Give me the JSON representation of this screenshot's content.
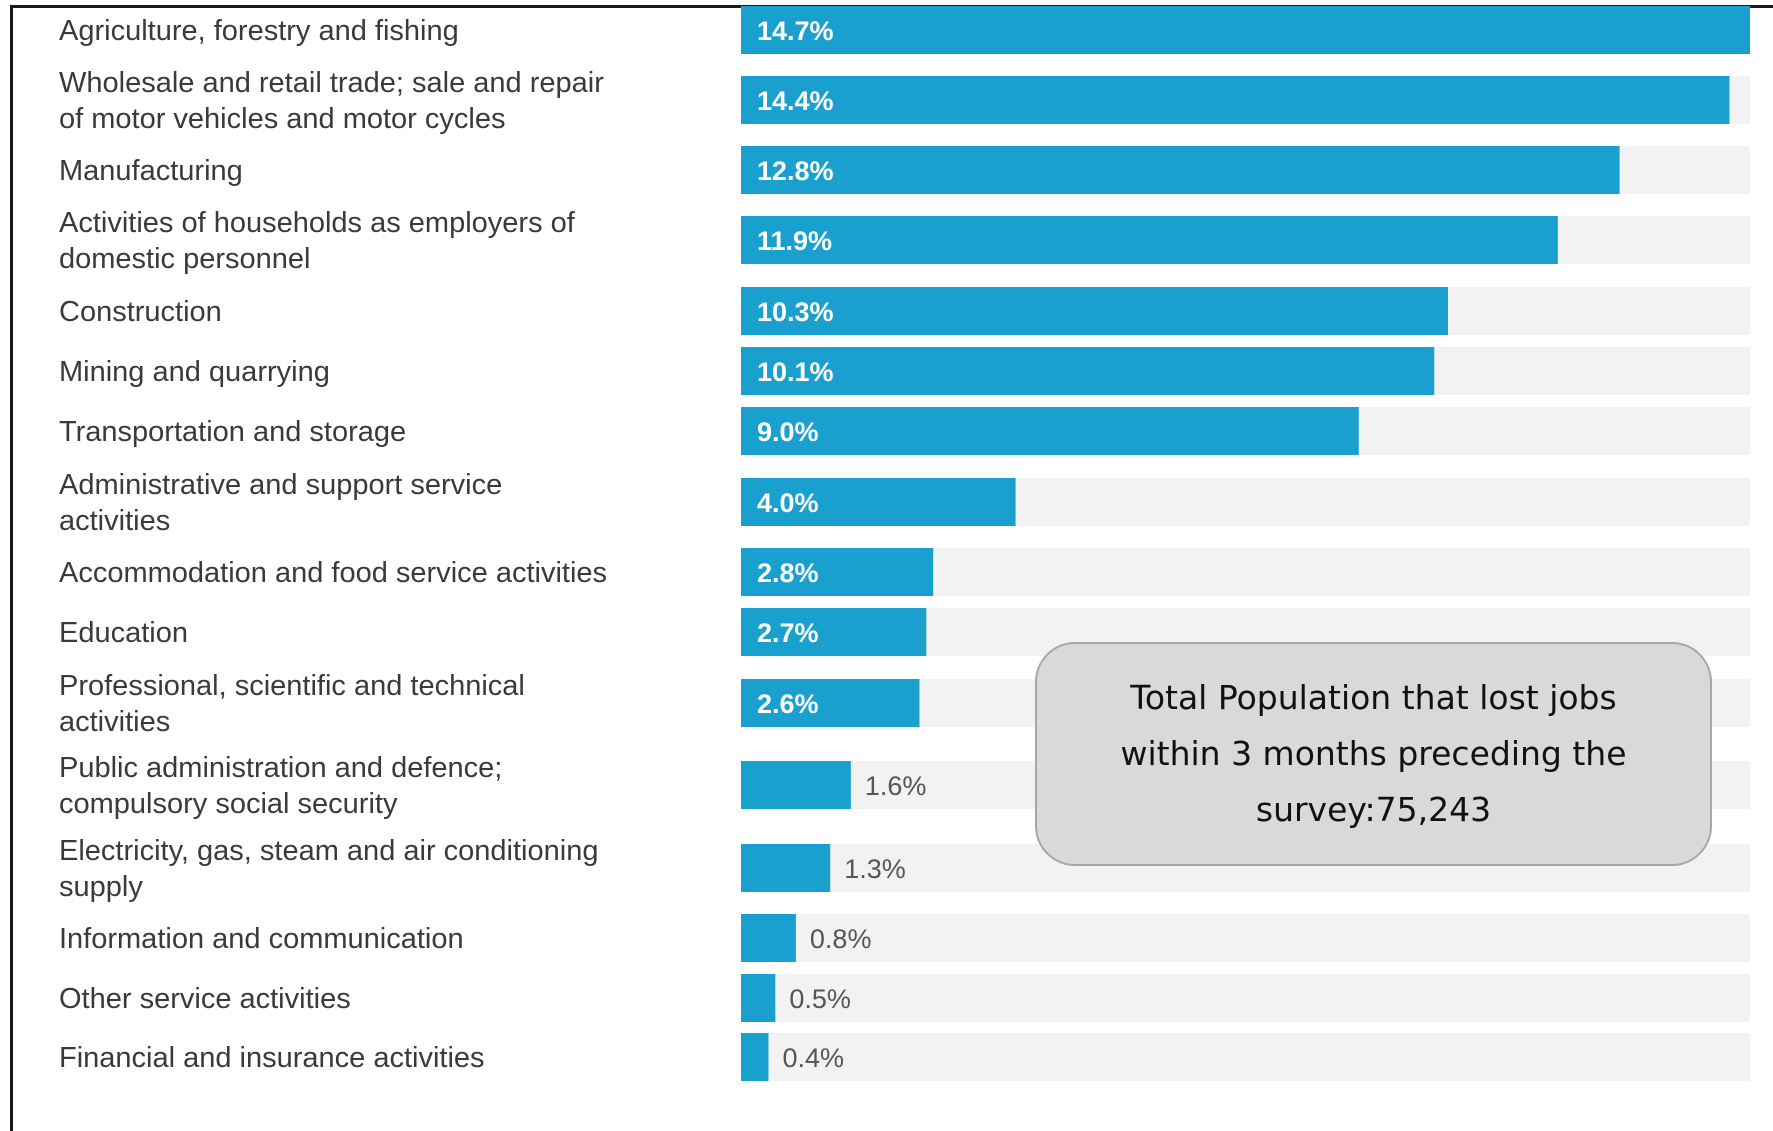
{
  "chart_data": {
    "type": "bar",
    "orientation": "horizontal",
    "bar_color": "#1aa0cf",
    "track_color": "#f2f2f2",
    "categories": [
      [
        "Agriculture, forestry and fishing"
      ],
      [
        "Wholesale and retail trade; sale and repair",
        "of motor vehicles and motor cycles"
      ],
      [
        "Manufacturing"
      ],
      [
        "Activities of households as employers of",
        "domestic personnel"
      ],
      [
        "Construction"
      ],
      [
        "Mining and quarrying"
      ],
      [
        "Transportation and storage"
      ],
      [
        "Administrative and support service",
        "activities"
      ],
      [
        "Accommodation and food service activities"
      ],
      [
        "Education"
      ],
      [
        "Professional, scientific and technical",
        "activities"
      ],
      [
        "Public administration and defence;",
        "compulsory social security"
      ],
      [
        "Electricity, gas, steam and air conditioning",
        "supply"
      ],
      [
        "Information and communication"
      ],
      [
        "Other service activities"
      ],
      [
        "Financial and insurance activities"
      ]
    ],
    "values": [
      14.7,
      14.4,
      12.8,
      11.9,
      10.3,
      10.1,
      9.0,
      4.0,
      2.8,
      2.7,
      2.6,
      1.6,
      1.3,
      0.8,
      0.5,
      0.4
    ],
    "value_labels": [
      "14.7%",
      "14.4%",
      "12.8%",
      "11.9%",
      "10.3%",
      "10.1%",
      "9.0%",
      "4.0%",
      "2.8%",
      "2.7%",
      "2.6%",
      "1.6%",
      "1.3%",
      "0.8%",
      "0.5%",
      "0.4%"
    ],
    "xlim": [
      0,
      14.7
    ],
    "annotation": "Total Population that lost jobs within 3 months preceding the survey:75,243"
  }
}
